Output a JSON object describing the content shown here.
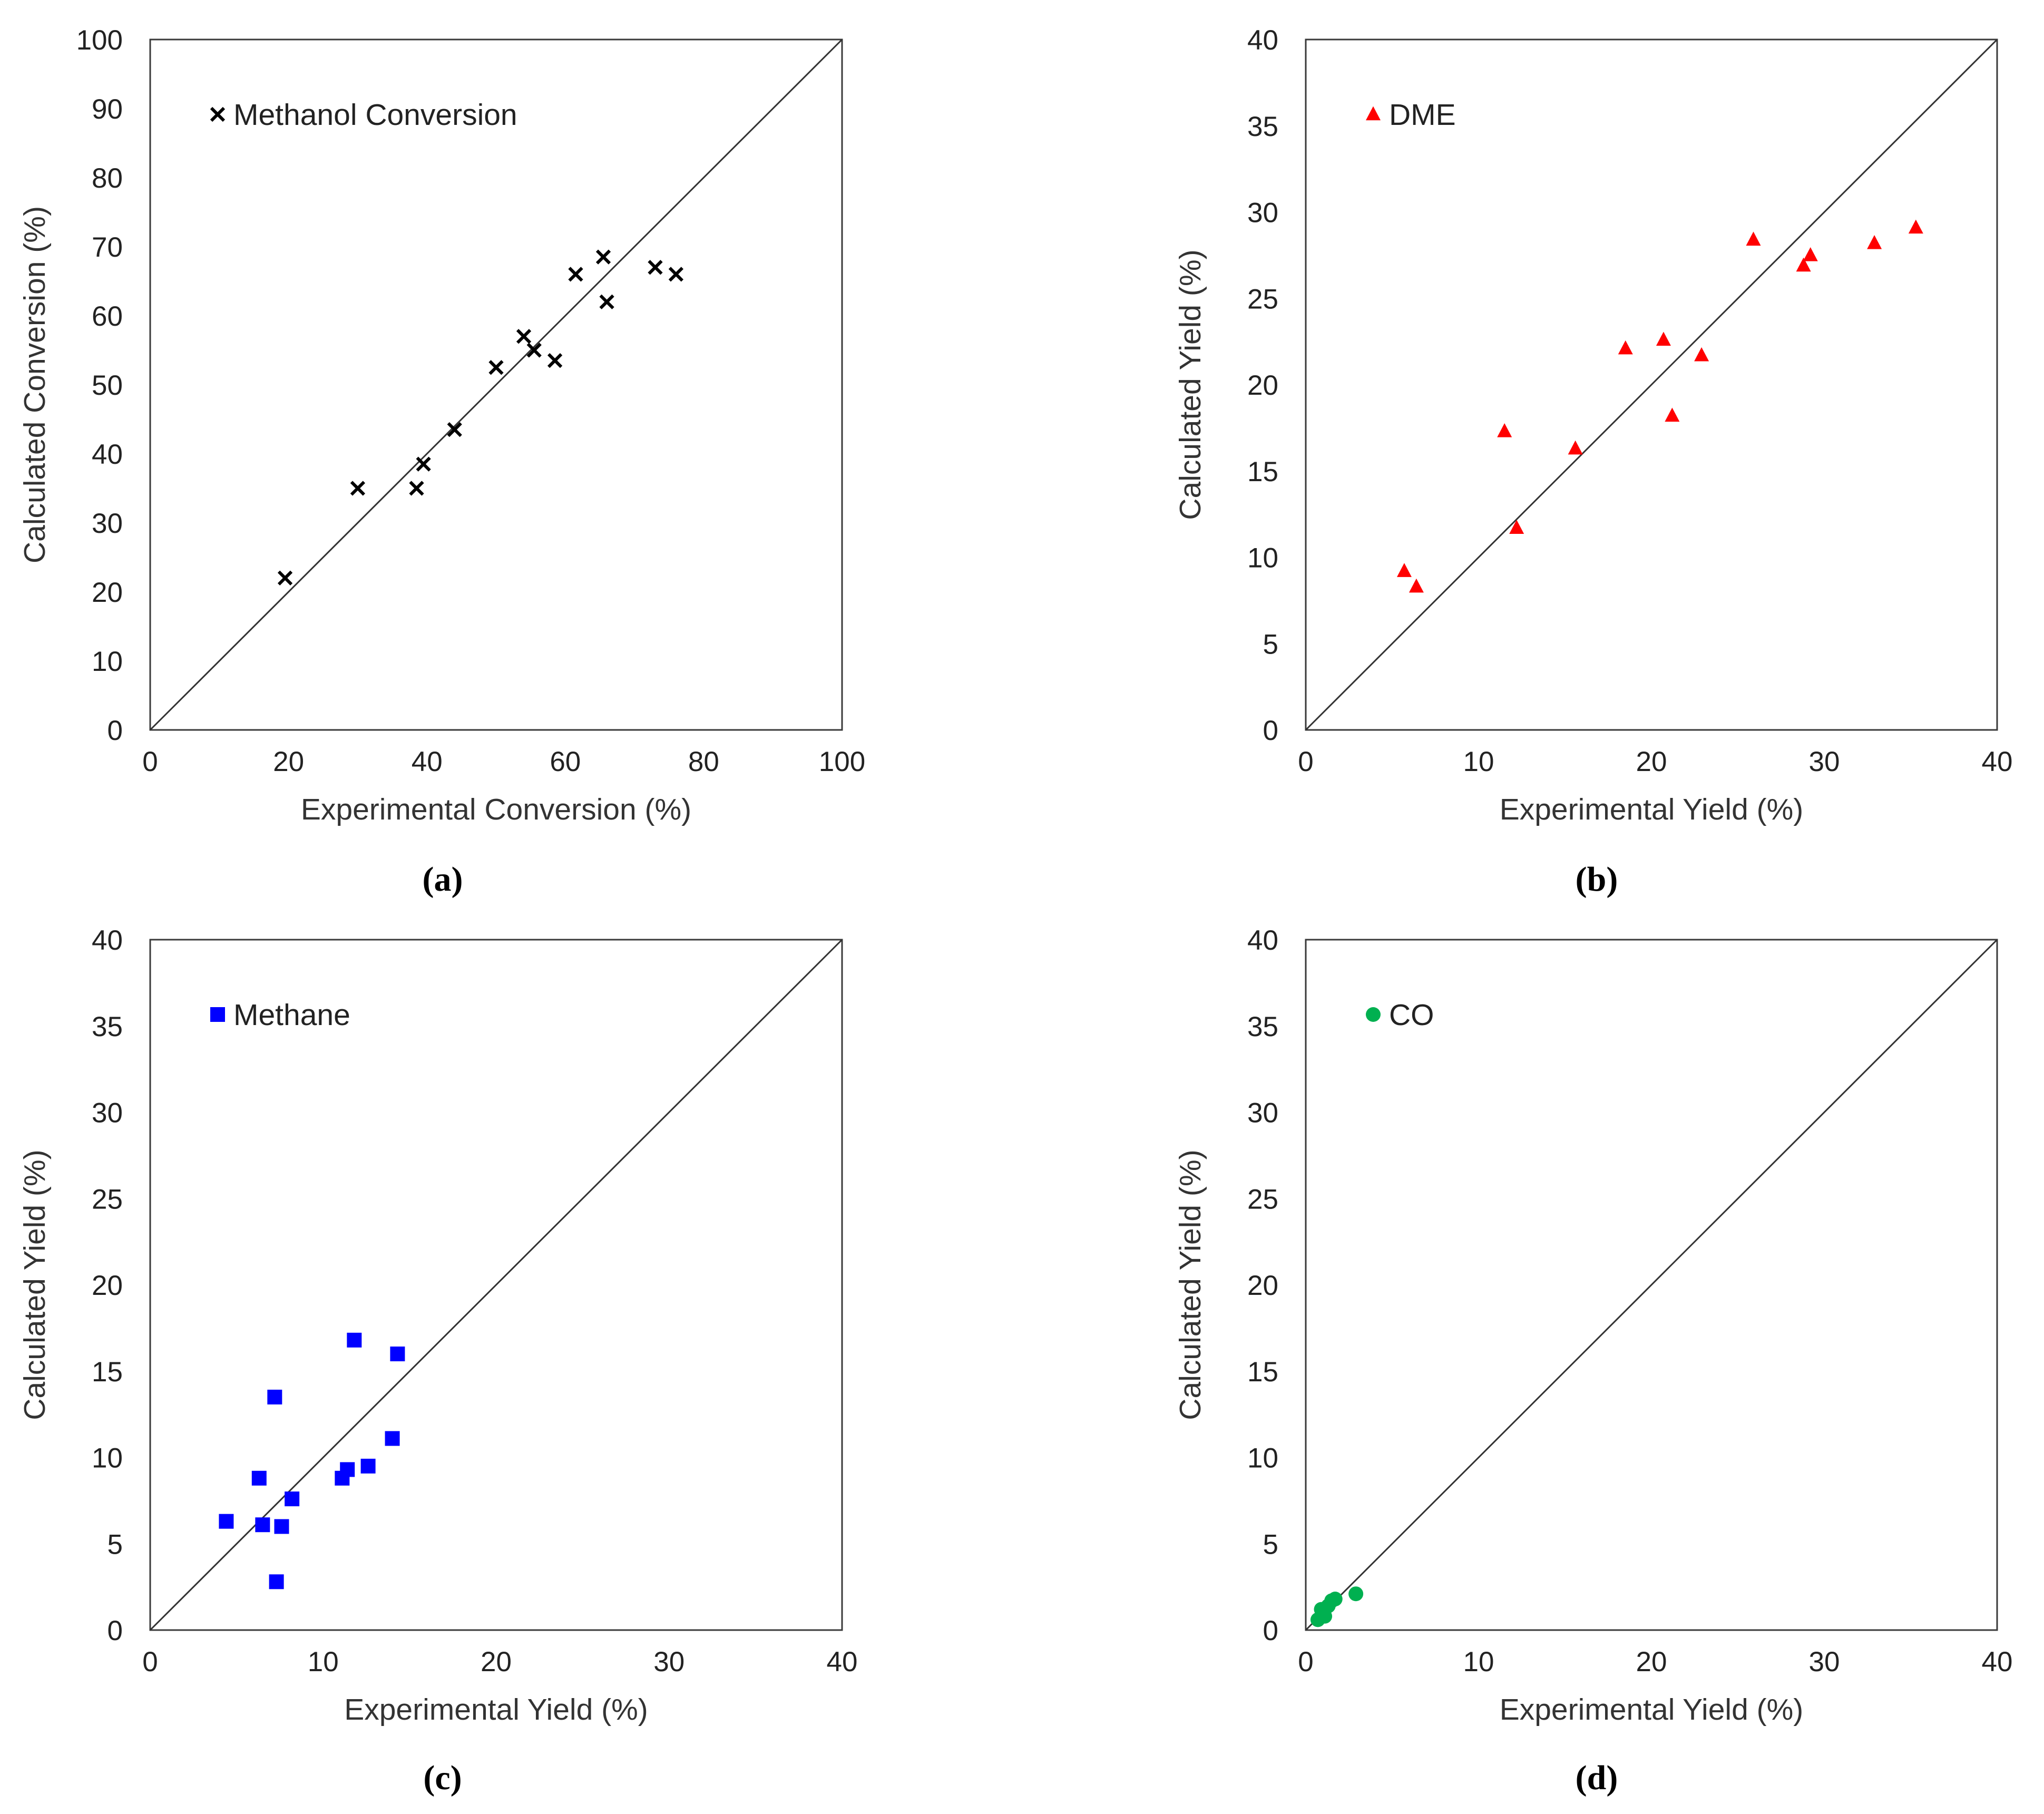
{
  "chart_data": [
    {
      "type": "scatter",
      "caption": "(a)",
      "xlabel": "Experimental Conversion (%)",
      "ylabel": "Calculated Conversion (%)",
      "xlim": [
        0,
        100
      ],
      "ylim": [
        0,
        100
      ],
      "xticks": [
        "0",
        "20",
        "40",
        "60",
        "80",
        "100"
      ],
      "yticks": [
        "0",
        "10",
        "20",
        "30",
        "40",
        "50",
        "60",
        "70",
        "80",
        "90",
        "100"
      ],
      "parity_line": true,
      "legend_position": "top-left",
      "series": [
        {
          "name": "Methanol Conversion",
          "marker": "x",
          "color": "#000000",
          "x": [
            19.5,
            30,
            38.5,
            39.5,
            44,
            50,
            54,
            55.5,
            58.5,
            61.5,
            65.5,
            66,
            73,
            76
          ],
          "y": [
            22,
            35,
            35,
            38.5,
            43.5,
            52.5,
            57,
            55,
            53.5,
            66,
            68.5,
            62,
            67,
            66
          ]
        }
      ]
    },
    {
      "type": "scatter",
      "caption": "(b)",
      "xlabel": "Experimental Yield (%)",
      "ylabel": "Calculated Yield (%)",
      "xlim": [
        0,
        40
      ],
      "ylim": [
        0,
        40
      ],
      "xticks": [
        "0",
        "10",
        "20",
        "30",
        "40"
      ],
      "yticks": [
        "0",
        "5",
        "10",
        "15",
        "20",
        "25",
        "30",
        "35",
        "40"
      ],
      "parity_line": true,
      "legend_position": "top-left",
      "series": [
        {
          "name": "DME",
          "marker": "triangle",
          "color": "#ff0000",
          "x": [
            5.7,
            6.4,
            11.5,
            12.2,
            15.6,
            18.5,
            20.7,
            21.2,
            22.9,
            25.9,
            28.8,
            29.2,
            32.9,
            35.3
          ],
          "y": [
            9.2,
            8.3,
            17.3,
            11.7,
            16.3,
            22.1,
            22.6,
            18.2,
            21.7,
            28.4,
            26.9,
            27.5,
            28.2,
            29.1
          ]
        }
      ]
    },
    {
      "type": "scatter",
      "caption": "(c)",
      "xlabel": "Experimental Yield (%)",
      "ylabel": "Calculated Yield (%)",
      "xlim": [
        0,
        40
      ],
      "ylim": [
        0,
        40
      ],
      "xticks": [
        "0",
        "10",
        "20",
        "30",
        "40"
      ],
      "yticks": [
        "0",
        "5",
        "10",
        "15",
        "20",
        "25",
        "30",
        "35",
        "40"
      ],
      "parity_line": true,
      "legend_position": "top-left",
      "series": [
        {
          "name": "Methane",
          "marker": "square",
          "color": "#0000ff",
          "x": [
            4.4,
            6.3,
            6.5,
            7.2,
            7.3,
            7.6,
            8.2,
            11.1,
            11.4,
            11.8,
            12.6,
            14.0,
            14.3
          ],
          "y": [
            6.3,
            8.8,
            6.1,
            13.5,
            2.8,
            6.0,
            7.6,
            8.8,
            9.3,
            16.8,
            9.5,
            11.1,
            16.0
          ]
        }
      ]
    },
    {
      "type": "scatter",
      "caption": "(d)",
      "xlabel": "Experimental Yield (%)",
      "ylabel": "Calculated Yield (%)",
      "xlim": [
        0,
        40
      ],
      "ylim": [
        0,
        40
      ],
      "xticks": [
        "0",
        "10",
        "20",
        "30",
        "40"
      ],
      "yticks": [
        "0",
        "5",
        "10",
        "15",
        "20",
        "25",
        "30",
        "35",
        "40"
      ],
      "parity_line": true,
      "legend_position": "top-left",
      "series": [
        {
          "name": "CO",
          "marker": "circle",
          "color": "#00b050",
          "x": [
            0.7,
            0.9,
            1.1,
            1.3,
            1.5,
            1.7,
            2.9
          ],
          "y": [
            0.6,
            1.2,
            0.8,
            1.4,
            1.7,
            1.8,
            2.1
          ]
        }
      ]
    }
  ]
}
